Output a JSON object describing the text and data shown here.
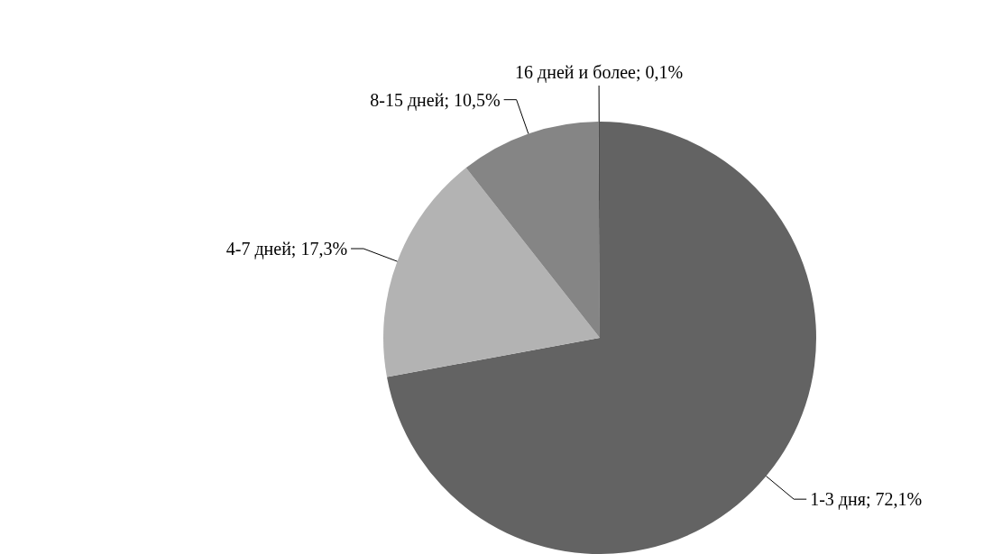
{
  "chart_data": {
    "type": "pie",
    "categories": [
      "1-3 дня",
      "4-7 дней",
      "8-15 дней",
      "16 дней и более"
    ],
    "values": [
      72.1,
      17.3,
      10.5,
      0.1
    ],
    "value_labels": [
      "72,1%",
      "17,3%",
      "10,5%",
      "0,1%"
    ],
    "colors": [
      "#636363",
      "#b3b3b3",
      "#858585",
      "#4d4d4d"
    ],
    "legend": false
  }
}
